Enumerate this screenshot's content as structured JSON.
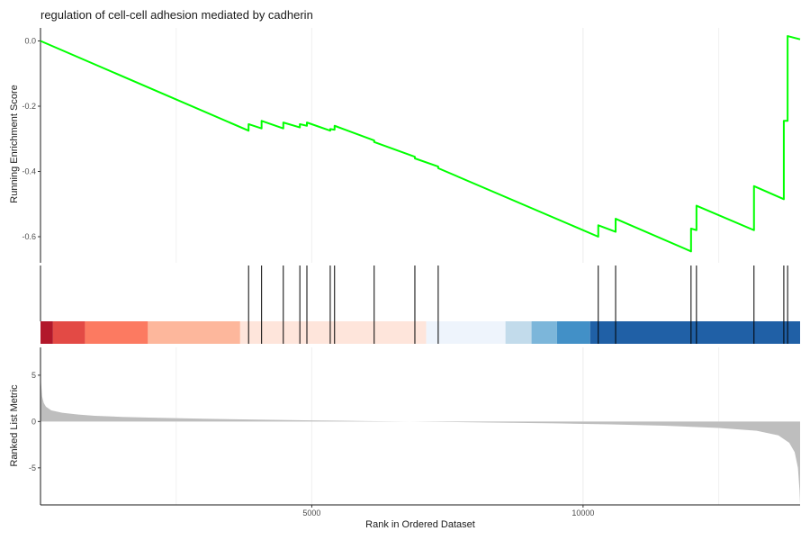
{
  "chart_data": {
    "type": "line",
    "title": "regulation of cell-cell adhesion mediated by cadherin",
    "xlabel": "Rank in Ordered Dataset",
    "ylabel_top": "Running Enrichment Score",
    "ylabel_bottom": "Ranked List Metric",
    "xlim": [
      0,
      14000
    ],
    "x_ticks": [
      5000,
      10000
    ],
    "x_tick_labels": [
      "5000",
      "10000"
    ],
    "es_ylim": [
      -0.68,
      0.04
    ],
    "es_y_ticks": [
      0.0,
      -0.2,
      -0.4,
      -0.6
    ],
    "es_y_tick_labels": [
      "0.0",
      "-0.2",
      "-0.4",
      "-0.6"
    ],
    "metric_ylim": [
      -9,
      8
    ],
    "metric_y_ticks": [
      5,
      0,
      -5
    ],
    "metric_y_tick_labels": [
      "5",
      "0",
      "-5"
    ],
    "grid": true,
    "line_color": "#00ff00",
    "hit_color": "#000000",
    "metric_fill_color": "#bebebe",
    "running_es": [
      [
        0,
        0.0
      ],
      [
        3835,
        -0.275
      ],
      [
        3835,
        -0.255
      ],
      [
        4075,
        -0.268
      ],
      [
        4075,
        -0.245
      ],
      [
        4475,
        -0.268
      ],
      [
        4475,
        -0.25
      ],
      [
        4780,
        -0.265
      ],
      [
        4780,
        -0.255
      ],
      [
        4910,
        -0.26
      ],
      [
        4910,
        -0.25
      ],
      [
        5340,
        -0.275
      ],
      [
        5340,
        -0.27
      ],
      [
        5420,
        -0.272
      ],
      [
        5420,
        -0.26
      ],
      [
        6150,
        -0.305
      ],
      [
        6150,
        -0.31
      ],
      [
        6900,
        -0.355
      ],
      [
        6900,
        -0.36
      ],
      [
        7330,
        -0.385
      ],
      [
        7330,
        -0.39
      ],
      [
        10280,
        -0.6
      ],
      [
        10280,
        -0.565
      ],
      [
        10600,
        -0.585
      ],
      [
        10600,
        -0.545
      ],
      [
        11990,
        -0.645
      ],
      [
        11990,
        -0.575
      ],
      [
        12090,
        -0.58
      ],
      [
        12090,
        -0.505
      ],
      [
        13150,
        -0.58
      ],
      [
        13150,
        -0.445
      ],
      [
        13700,
        -0.485
      ],
      [
        13700,
        -0.245
      ],
      [
        13770,
        -0.245
      ],
      [
        13770,
        0.015
      ],
      [
        14000,
        0.005
      ]
    ],
    "hits": [
      3835,
      4075,
      4475,
      4780,
      4910,
      5340,
      5420,
      6150,
      6900,
      7330,
      10280,
      10600,
      11990,
      12090,
      13150,
      13700,
      13770
    ],
    "color_bar": [
      {
        "from": 0,
        "to": 230,
        "color": "#b2182b"
      },
      {
        "from": 230,
        "to": 820,
        "color": "#e34a45"
      },
      {
        "from": 820,
        "to": 1980,
        "color": "#fc7a61"
      },
      {
        "from": 1980,
        "to": 3680,
        "color": "#fdb79c"
      },
      {
        "from": 3680,
        "to": 7110,
        "color": "#fee5db"
      },
      {
        "from": 7110,
        "to": 8570,
        "color": "#eef4fc"
      },
      {
        "from": 8570,
        "to": 9050,
        "color": "#c2dbeb"
      },
      {
        "from": 9050,
        "to": 9520,
        "color": "#7cb6da"
      },
      {
        "from": 9520,
        "to": 10130,
        "color": "#4290c7"
      },
      {
        "from": 10130,
        "to": 14000,
        "color": "#2060a6"
      }
    ],
    "metric_curve": [
      [
        0,
        8.5
      ],
      [
        10,
        4.2
      ],
      [
        30,
        2.7
      ],
      [
        60,
        2.0
      ],
      [
        100,
        1.6
      ],
      [
        200,
        1.2
      ],
      [
        400,
        0.95
      ],
      [
        700,
        0.75
      ],
      [
        1000,
        0.62
      ],
      [
        1500,
        0.5
      ],
      [
        2000,
        0.42
      ],
      [
        3000,
        0.3
      ],
      [
        4000,
        0.2
      ],
      [
        5000,
        0.12
      ],
      [
        6000,
        0.05
      ],
      [
        6800,
        0.0
      ],
      [
        7500,
        -0.05
      ],
      [
        8500,
        -0.12
      ],
      [
        9500,
        -0.2
      ],
      [
        10500,
        -0.3
      ],
      [
        11500,
        -0.45
      ],
      [
        12500,
        -0.7
      ],
      [
        13200,
        -1.0
      ],
      [
        13600,
        -1.5
      ],
      [
        13800,
        -2.3
      ],
      [
        13900,
        -3.3
      ],
      [
        13960,
        -5.0
      ],
      [
        13990,
        -7.5
      ],
      [
        14000,
        -9.0
      ]
    ]
  }
}
